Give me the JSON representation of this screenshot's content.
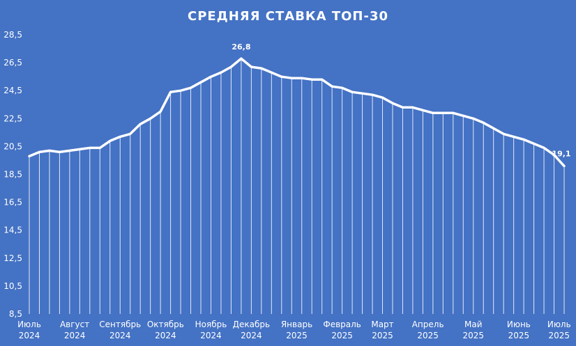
{
  "chart_data": {
    "type": "line",
    "title": "СРЕДНЯЯ СТАВКА ТОП-30",
    "xlabel": "",
    "ylabel": "",
    "ylim": [
      8.5,
      28.5
    ],
    "yticks": [
      "8,5",
      "10,5",
      "12,5",
      "14,5",
      "16,5",
      "18,5",
      "20,5",
      "22,5",
      "24,5",
      "26,5",
      "28,5"
    ],
    "x_tick_labels": [
      {
        "month": "Июль",
        "year": "2024",
        "index": 0
      },
      {
        "month": "Август",
        "year": "2024",
        "index": 4.5
      },
      {
        "month": "Сентябрь",
        "year": "2024",
        "index": 9
      },
      {
        "month": "Октябрь",
        "year": "2024",
        "index": 13.5
      },
      {
        "month": "Ноябрь",
        "year": "2024",
        "index": 18
      },
      {
        "month": "Декабрь",
        "year": "2024",
        "index": 22
      },
      {
        "month": "Январь",
        "year": "2025",
        "index": 26.5
      },
      {
        "month": "Февраль",
        "year": "2025",
        "index": 31
      },
      {
        "month": "Март",
        "year": "2025",
        "index": 35
      },
      {
        "month": "Апрель",
        "year": "2025",
        "index": 39.5
      },
      {
        "month": "Май",
        "year": "2025",
        "index": 44
      },
      {
        "month": "Июнь",
        "year": "2025",
        "index": 48.5
      },
      {
        "month": "Июль",
        "year": "2025",
        "index": 52.5
      }
    ],
    "series": [
      {
        "values": [
          19.8,
          20.1,
          20.2,
          20.1,
          20.2,
          20.3,
          20.4,
          20.4,
          20.9,
          21.2,
          21.4,
          22.1,
          22.5,
          23.0,
          24.4,
          24.5,
          24.7,
          25.1,
          25.5,
          25.8,
          26.2,
          26.8,
          26.2,
          26.1,
          25.8,
          25.5,
          25.4,
          25.4,
          25.3,
          25.3,
          24.8,
          24.7,
          24.4,
          24.3,
          24.2,
          24.0,
          23.6,
          23.3,
          23.3,
          23.1,
          22.9,
          22.9,
          22.9,
          22.7,
          22.5,
          22.2,
          21.8,
          21.4,
          21.2,
          21.0,
          20.7,
          20.4,
          19.9,
          19.1
        ],
        "color": "#ffffff"
      }
    ],
    "data_labels": [
      {
        "index": 21,
        "text": "26,8"
      },
      {
        "index": 53,
        "text": "19,1"
      }
    ],
    "grid": false,
    "drop_lines": true,
    "legend": "none"
  }
}
